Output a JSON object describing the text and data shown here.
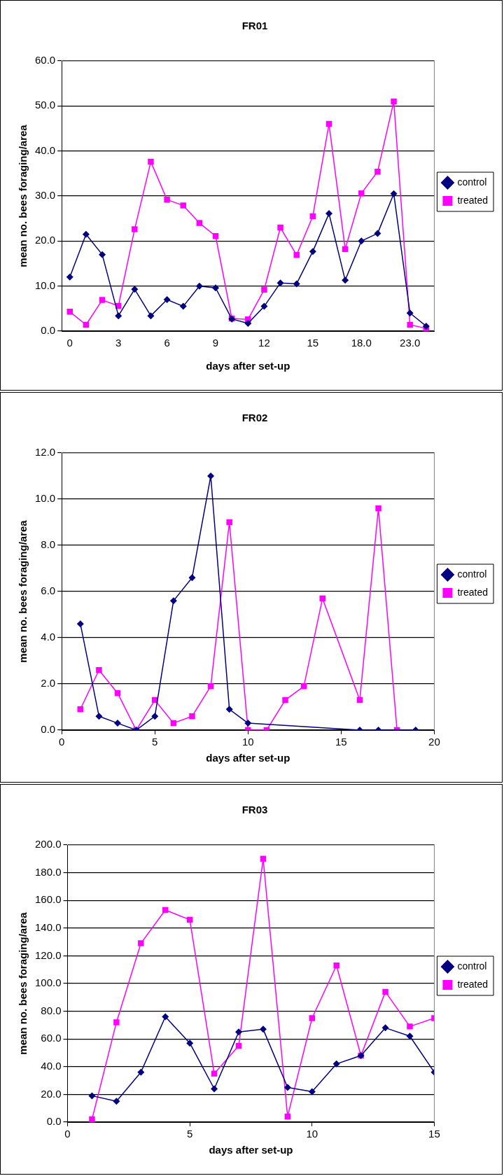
{
  "chart_data": [
    {
      "type": "line",
      "title": "FR01",
      "xlabel": "days after set-up",
      "ylabel": "mean no. bees foraging/area",
      "categories": [
        "0",
        null,
        null,
        "3",
        null,
        null,
        "6",
        null,
        null,
        "9",
        null,
        null,
        "12",
        null,
        null,
        "15",
        null,
        null,
        "18.0",
        null,
        null,
        "23.0",
        null
      ],
      "series": [
        {
          "name": "control",
          "color": "#000080",
          "marker": "diamond",
          "values": [
            12.0,
            21.5,
            17.0,
            3.4,
            9.3,
            3.4,
            7.0,
            5.5,
            10.0,
            9.6,
            2.7,
            1.7,
            5.5,
            10.7,
            10.5,
            17.7,
            26.1,
            11.3,
            20.0,
            21.7,
            30.5,
            4.0,
            1.1
          ]
        },
        {
          "name": "treated",
          "color": "#ff00ff",
          "marker": "square",
          "values": [
            4.3,
            1.4,
            6.9,
            5.6,
            22.6,
            37.6,
            29.2,
            27.9,
            24.0,
            21.1,
            2.8,
            2.6,
            9.2,
            23.0,
            16.9,
            25.5,
            46.0,
            18.2,
            30.6,
            35.4,
            51.0,
            1.4,
            0.6
          ]
        }
      ],
      "ylim": [
        0,
        60
      ],
      "yticks": [
        {
          "value": 0,
          "label": "0.0"
        },
        {
          "value": 10,
          "label": "10.0"
        },
        {
          "value": 20,
          "label": "20.0"
        },
        {
          "value": 30,
          "label": "30.0"
        },
        {
          "value": 40,
          "label": "40.0"
        },
        {
          "value": 50,
          "label": "50.0"
        },
        {
          "value": 60,
          "label": "60.0"
        }
      ],
      "grid": "y",
      "legend": "right"
    },
    {
      "type": "line",
      "title": "FR02",
      "xlabel": "days after set-up",
      "ylabel": "mean no. bees foraging/area",
      "series": [
        {
          "name": "control",
          "color": "#000080",
          "marker": "diamond",
          "x": [
            1,
            2,
            3,
            4,
            5,
            6,
            7,
            8,
            9,
            10,
            16,
            17,
            19
          ],
          "values": [
            4.6,
            0.6,
            0.3,
            0.0,
            0.6,
            5.6,
            6.6,
            11.0,
            0.9,
            0.3,
            0.0,
            0.0,
            0.0
          ]
        },
        {
          "name": "treated",
          "color": "#ff00ff",
          "marker": "square",
          "x": [
            1,
            2,
            3,
            4,
            5,
            6,
            7,
            8,
            9,
            10,
            11,
            12,
            13,
            14,
            16,
            17,
            18
          ],
          "values": [
            0.9,
            2.6,
            1.6,
            0.0,
            1.3,
            0.3,
            0.6,
            1.9,
            9.0,
            0.0,
            0.0,
            1.3,
            1.9,
            5.7,
            1.3,
            9.6,
            0.0
          ]
        }
      ],
      "xlim": [
        0,
        20
      ],
      "xticks": [
        0,
        5,
        10,
        15,
        20
      ],
      "ylim": [
        0,
        12
      ],
      "yticks": [
        {
          "value": 0,
          "label": "0.0"
        },
        {
          "value": 2,
          "label": "2.0"
        },
        {
          "value": 4,
          "label": "4.0"
        },
        {
          "value": 6,
          "label": "6.0"
        },
        {
          "value": 8,
          "label": "8.0"
        },
        {
          "value": 10,
          "label": "10.0"
        },
        {
          "value": 12,
          "label": "12.0"
        }
      ],
      "grid": "y",
      "legend": "right"
    },
    {
      "type": "line",
      "title": "FR03",
      "xlabel": "days after set-up",
      "ylabel": "mean no. bees foraging/area",
      "series": [
        {
          "name": "control",
          "color": "#000080",
          "marker": "diamond",
          "x": [
            1,
            2,
            3,
            4,
            5,
            6,
            7,
            8,
            9,
            10,
            11,
            12,
            13,
            14,
            15
          ],
          "values": [
            19,
            15,
            36,
            76,
            57,
            24,
            65,
            67,
            25,
            22,
            42,
            48,
            68,
            62,
            36
          ]
        },
        {
          "name": "treated",
          "color": "#ff00ff",
          "marker": "square",
          "x": [
            1,
            2,
            3,
            4,
            5,
            6,
            7,
            8,
            9,
            10,
            11,
            12,
            13,
            14,
            15
          ],
          "values": [
            2,
            72,
            129,
            153,
            146,
            35,
            55,
            190,
            4,
            75,
            113,
            48,
            94,
            69,
            75
          ]
        }
      ],
      "xlim": [
        0,
        15
      ],
      "xticks": [
        0,
        5,
        10,
        15
      ],
      "ylim": [
        0,
        200
      ],
      "yticks": [
        {
          "value": 0,
          "label": "0.0"
        },
        {
          "value": 20,
          "label": "20.0"
        },
        {
          "value": 40,
          "label": "40.0"
        },
        {
          "value": 60,
          "label": "60.0"
        },
        {
          "value": 80,
          "label": "80.0"
        },
        {
          "value": 100,
          "label": "100.0"
        },
        {
          "value": 120,
          "label": "120.0"
        },
        {
          "value": 140,
          "label": "140.0"
        },
        {
          "value": 160,
          "label": "160.0"
        },
        {
          "value": 180,
          "label": "180.0"
        },
        {
          "value": 200,
          "label": "200.0"
        }
      ],
      "grid": "y",
      "legend": "right"
    }
  ]
}
